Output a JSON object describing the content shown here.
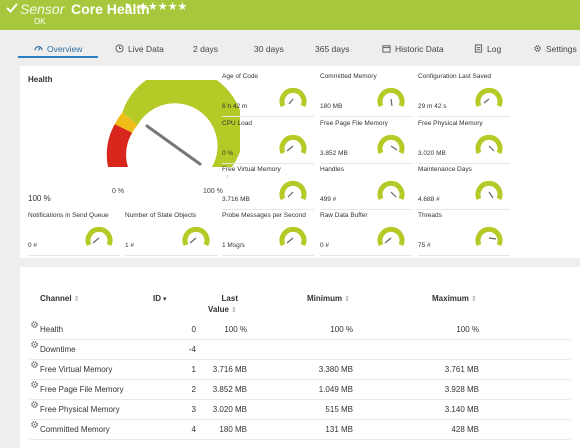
{
  "header": {
    "sensor_word": "Sensor",
    "title": "Core Health",
    "status": "OK",
    "stars": "★★★★★",
    "flag": "⚑"
  },
  "tabs": [
    {
      "label": "Overview",
      "icon": "gauge-icon",
      "active": true
    },
    {
      "label": "Live Data",
      "icon": "clock-icon"
    },
    {
      "label": "2  days"
    },
    {
      "label": "30  days"
    },
    {
      "label": "365  days"
    },
    {
      "label": "Historic Data",
      "icon": "calendar-icon"
    },
    {
      "label": "Log",
      "icon": "log-icon"
    },
    {
      "label": "Settings",
      "icon": "gear-icon"
    }
  ],
  "health": {
    "title": "Health",
    "value_label": "100 %",
    "gauge_min": "0 %",
    "gauge_max": "100 %"
  },
  "gauges": [
    {
      "label": "Age of Code",
      "value": "6 h 42 m"
    },
    {
      "label": "Committed Memory",
      "value": "180 MB"
    },
    {
      "label": "Configuration Last Saved",
      "value": "29 m 42 s"
    },
    {
      "label": "CPU Load",
      "value": "0 %"
    },
    {
      "label": "Free Page File Memory",
      "value": "3.852 MB"
    },
    {
      "label": "Free Physical Memory",
      "value": "3.020 MB"
    },
    {
      "label": "Free Virtual Memory",
      "value": "3.716 MB"
    },
    {
      "label": "Handles",
      "value": "499 #"
    },
    {
      "label": "Maintenance Days",
      "value": "4.688 #"
    },
    {
      "label": "Notifications in Send Queue",
      "value": "0 #"
    },
    {
      "label": "Number of State Objects",
      "value": "1 #"
    },
    {
      "label": "Probe Messages per Second",
      "value": "1 Msg/s"
    },
    {
      "label": "Raw Data Buffer",
      "value": "0 #"
    },
    {
      "label": "Threads",
      "value": "75 #"
    }
  ],
  "table": {
    "headers": {
      "channel": "Channel",
      "id": "ID",
      "last_line1": "Last",
      "last_line2": "Value",
      "minimum": "Minimum",
      "maximum": "Maximum"
    },
    "rows": [
      {
        "channel": "Health",
        "id": "0",
        "last": "100 %",
        "min": "100 %",
        "max": "100 %"
      },
      {
        "channel": "Downtime",
        "id": "-4",
        "last": "",
        "min": "",
        "max": ""
      },
      {
        "channel": "Free Virtual Memory",
        "id": "1",
        "last": "3.716 MB",
        "min": "3.380 MB",
        "max": "3.761 MB"
      },
      {
        "channel": "Free Page File Memory",
        "id": "2",
        "last": "3.852 MB",
        "min": "1.049 MB",
        "max": "3.928 MB"
      },
      {
        "channel": "Free Physical Memory",
        "id": "3",
        "last": "3.020 MB",
        "min": "515 MB",
        "max": "3.140 MB"
      },
      {
        "channel": "Committed Memory",
        "id": "4",
        "last": "180 MB",
        "min": "131 MB",
        "max": "428 MB"
      }
    ]
  },
  "colors": {
    "header_bg": "#a7c83c",
    "gauge_green": "#b5c927",
    "gauge_yellow": "#f0bd18",
    "gauge_red": "#d9261c",
    "tab_active": "#2b7fc3"
  }
}
